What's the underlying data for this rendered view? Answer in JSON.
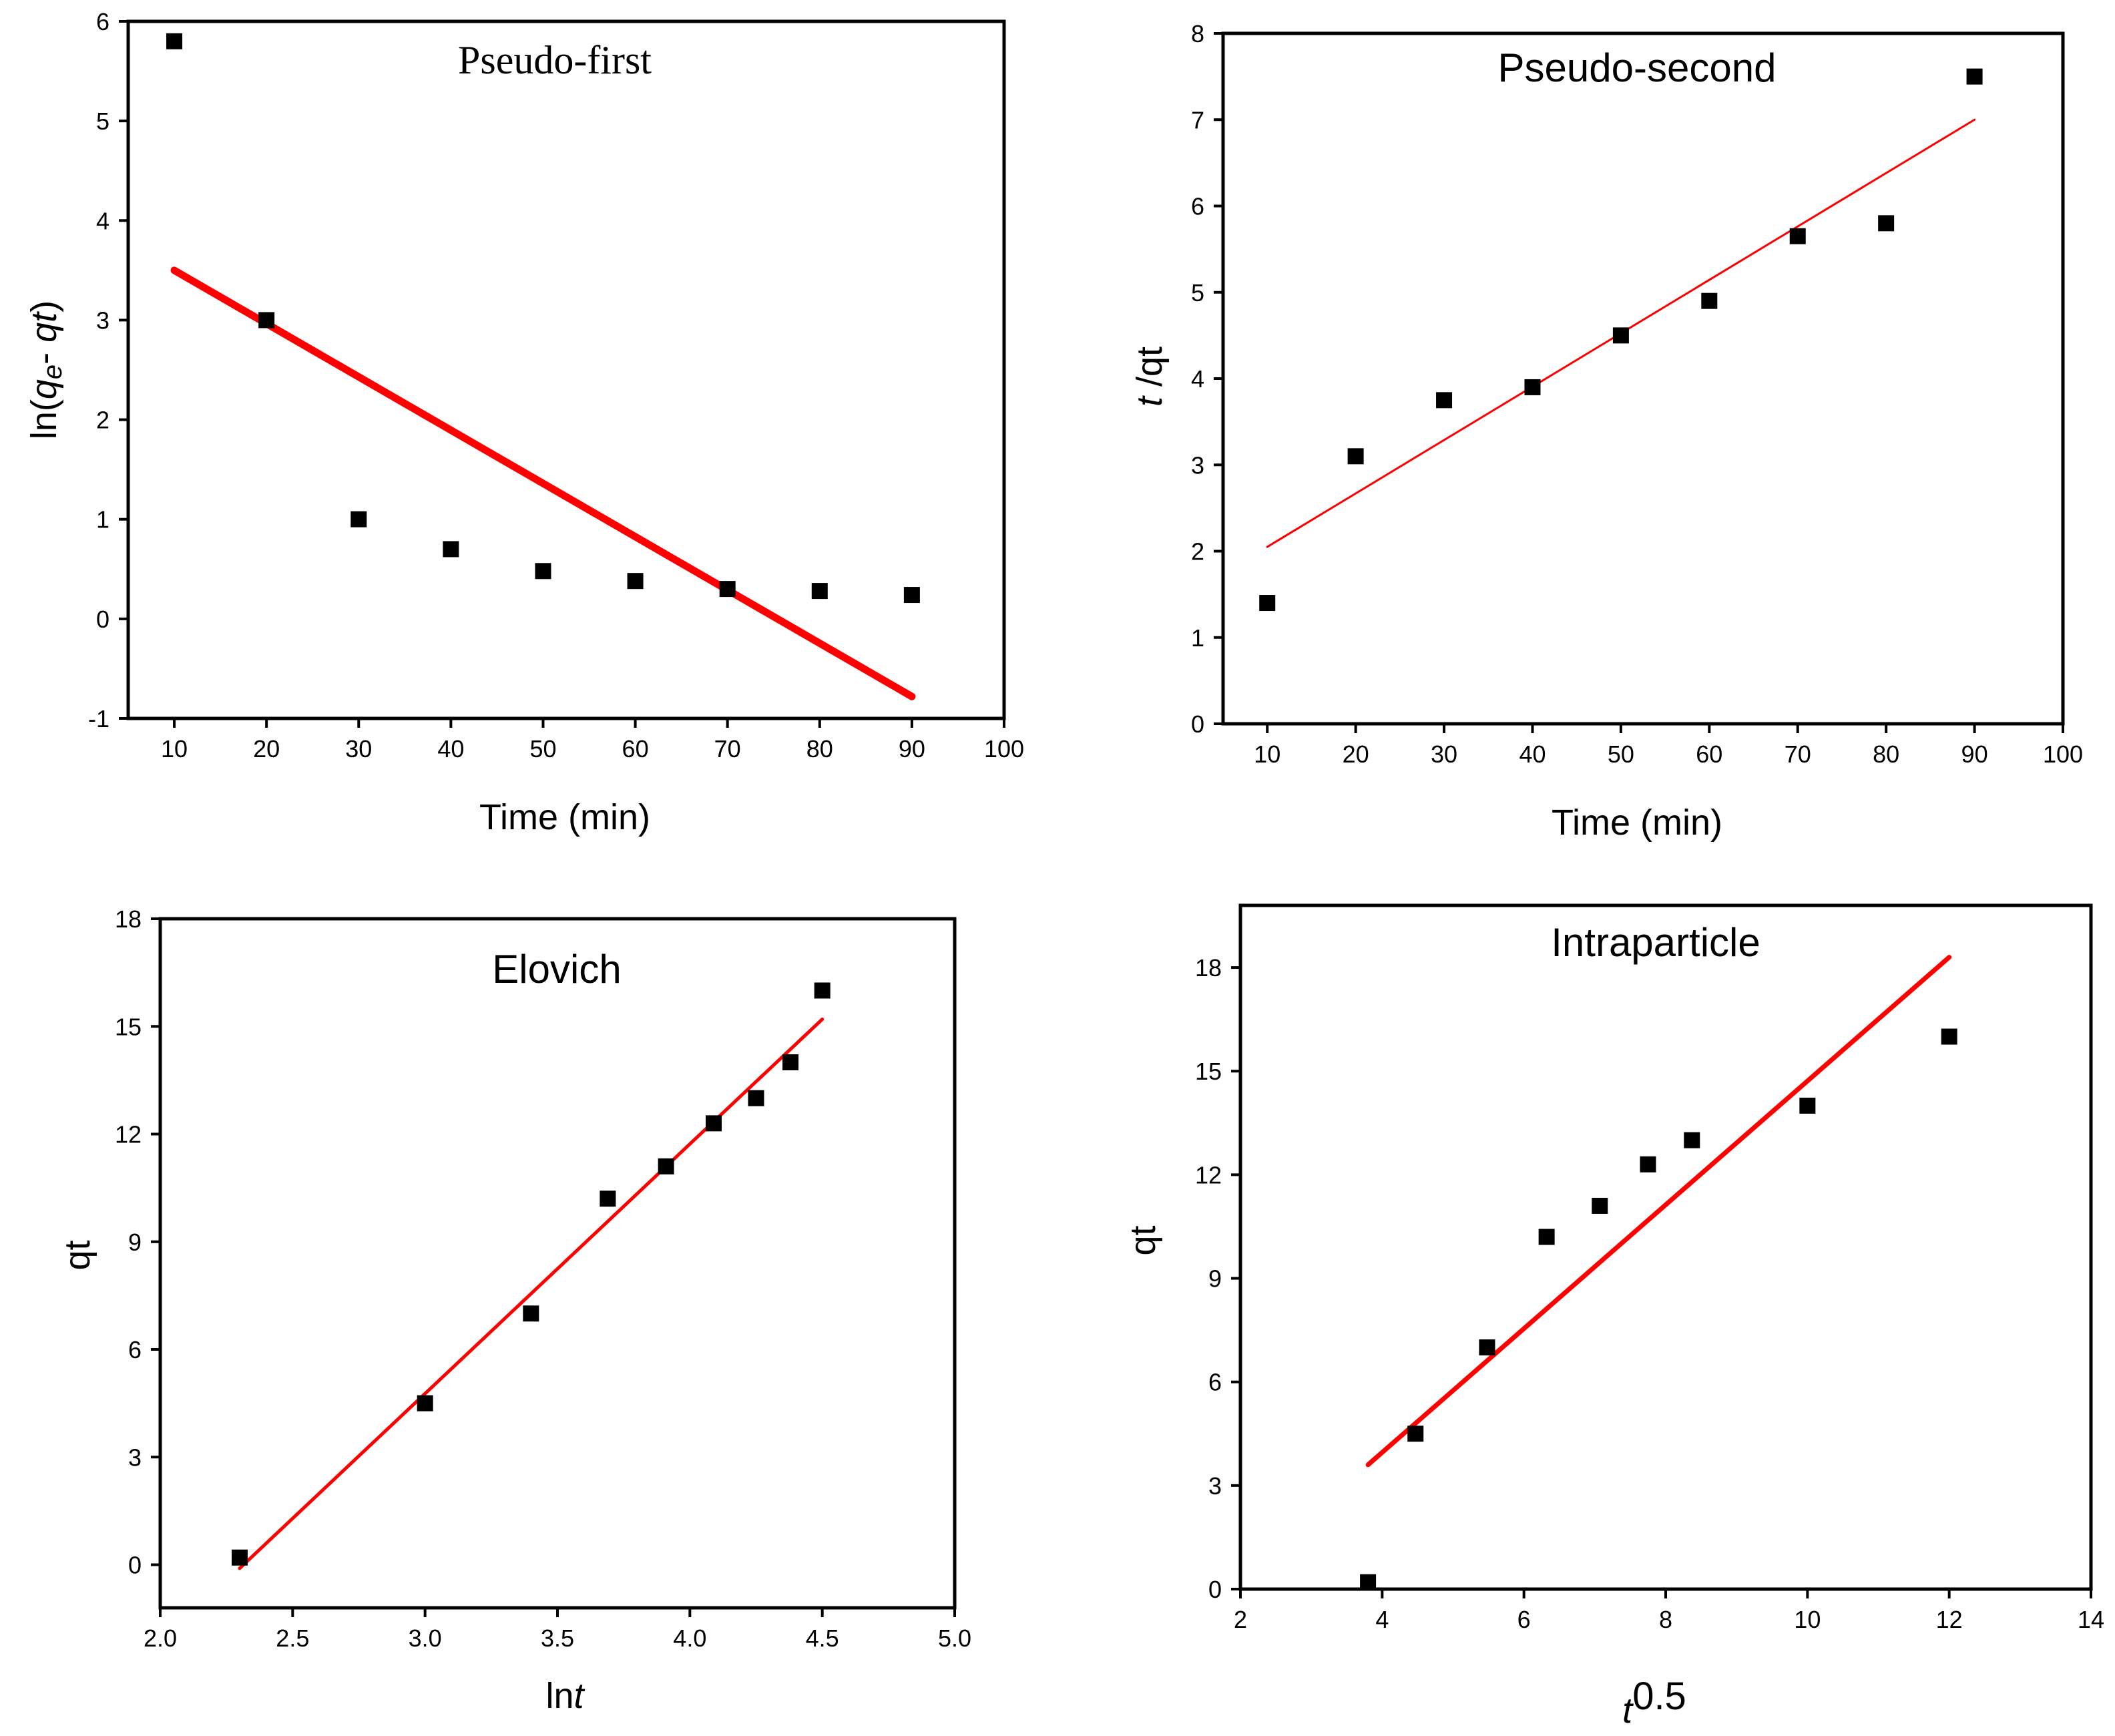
{
  "chart_data": [
    {
      "id": "pseudo-first",
      "type": "scatter",
      "title": "Pseudo-first",
      "xlabel": "Time (min)",
      "ylabel": "ln(qe- qt)",
      "xlim": [
        5,
        100
      ],
      "ylim": [
        -1,
        6
      ],
      "xticks": [
        10,
        20,
        30,
        40,
        50,
        60,
        70,
        80,
        90,
        100
      ],
      "yticks": [
        -1,
        0,
        1,
        2,
        3,
        4,
        5,
        6
      ],
      "xtick_labels": [
        "10",
        "20",
        "30",
        "40",
        "50",
        "60",
        "70",
        "80",
        "90",
        "100"
      ],
      "ytick_labels": [
        "-1",
        "0",
        "1",
        "2",
        "3",
        "4",
        "5",
        "6"
      ],
      "points": {
        "x": [
          10,
          20,
          30,
          40,
          50,
          60,
          70,
          80,
          90
        ],
        "y": [
          5.8,
          3.0,
          1.0,
          0.7,
          0.48,
          0.38,
          0.3,
          0.28,
          0.24
        ]
      },
      "fit_line": {
        "x": [
          10,
          90
        ],
        "y": [
          3.5,
          -0.78
        ],
        "color": "#ff0000"
      },
      "marker_color": "#000000",
      "grid": false
    },
    {
      "id": "pseudo-second",
      "type": "scatter",
      "title": "Pseudo-second",
      "xlabel": "Time (min)",
      "ylabel": "t /qt",
      "xlim": [
        5,
        100
      ],
      "ylim": [
        0,
        8
      ],
      "xticks": [
        10,
        20,
        30,
        40,
        50,
        60,
        70,
        80,
        90,
        100
      ],
      "yticks": [
        0,
        1,
        2,
        3,
        4,
        5,
        6,
        7,
        8
      ],
      "xtick_labels": [
        "10",
        "20",
        "30",
        "40",
        "50",
        "60",
        "70",
        "80",
        "90",
        "100"
      ],
      "ytick_labels": [
        "0",
        "1",
        "2",
        "3",
        "4",
        "5",
        "6",
        "7",
        "8"
      ],
      "points": {
        "x": [
          10,
          20,
          30,
          40,
          50,
          60,
          70,
          80,
          90
        ],
        "y": [
          1.4,
          3.1,
          3.75,
          3.9,
          4.5,
          4.9,
          5.65,
          5.8,
          7.5
        ]
      },
      "fit_line": {
        "x": [
          10,
          90
        ],
        "y": [
          2.05,
          7.0
        ],
        "color": "#ff0000"
      },
      "marker_color": "#000000",
      "grid": false
    },
    {
      "id": "elovich",
      "type": "scatter",
      "title": "Elovich",
      "xlabel": "lnt",
      "ylabel": "qt",
      "xlim": [
        2.0,
        5.0
      ],
      "ylim": [
        -1.2,
        18
      ],
      "xticks": [
        2.0,
        2.5,
        3.0,
        3.5,
        4.0,
        4.5,
        5.0
      ],
      "yticks": [
        0,
        3,
        6,
        9,
        12,
        15,
        18
      ],
      "xtick_labels": [
        "2.0",
        "2.5",
        "3.0",
        "3.5",
        "4.0",
        "4.5",
        "5.0"
      ],
      "ytick_labels": [
        "0",
        "3",
        "6",
        "9",
        "12",
        "15",
        "18"
      ],
      "points": {
        "x": [
          2.3,
          3.0,
          3.4,
          3.69,
          3.91,
          4.09,
          4.25,
          4.38,
          4.5
        ],
        "y": [
          0.2,
          4.5,
          7.0,
          10.2,
          11.1,
          12.3,
          13.0,
          14.0,
          16.0
        ]
      },
      "fit_line": {
        "x": [
          2.3,
          4.5
        ],
        "y": [
          -0.1,
          15.2
        ],
        "color": "#ff0000"
      },
      "marker_color": "#000000",
      "grid": false
    },
    {
      "id": "intraparticle",
      "type": "scatter",
      "title": "Intraparticle",
      "xlabel": "t0.5",
      "ylabel": "qt",
      "xlim": [
        2,
        14
      ],
      "ylim": [
        0,
        19.8
      ],
      "xticks": [
        2,
        4,
        6,
        8,
        10,
        12,
        14
      ],
      "yticks": [
        0,
        3,
        6,
        9,
        12,
        15,
        18
      ],
      "xtick_labels": [
        "2",
        "4",
        "6",
        "8",
        "10",
        "12",
        "14"
      ],
      "ytick_labels": [
        "0",
        "3",
        "6",
        "9",
        "12",
        "15",
        "18"
      ],
      "points": {
        "x": [
          3.8,
          4.47,
          5.48,
          6.32,
          7.07,
          7.75,
          8.37,
          10.0,
          12.0
        ],
        "y": [
          0.2,
          4.5,
          7.0,
          10.2,
          11.1,
          12.3,
          13.0,
          14.0,
          16.0
        ]
      },
      "fit_line": {
        "x": [
          3.8,
          12.0
        ],
        "y": [
          3.6,
          18.3
        ],
        "color": "#ff0000"
      },
      "marker_color": "#000000",
      "grid": false
    }
  ]
}
